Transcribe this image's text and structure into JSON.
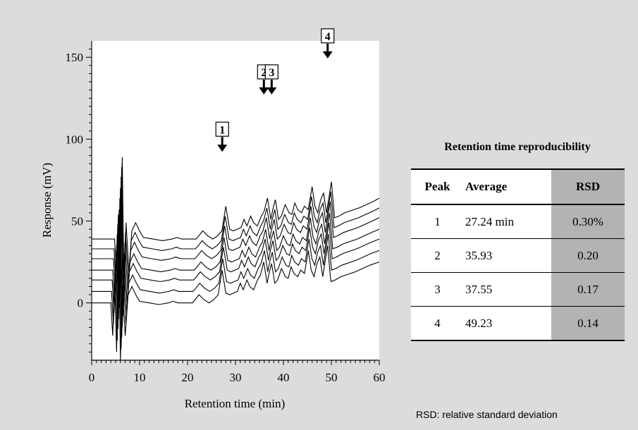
{
  "chart_data": {
    "type": "line",
    "xlabel": "Retention time (min)",
    "ylabel": "Response (mV)",
    "xlim": [
      0,
      60
    ],
    "ylim": [
      -35,
      160
    ],
    "x_ticks": [
      "0",
      "10",
      "20",
      "30",
      "40",
      "50",
      "60"
    ],
    "y_ticks": [
      "0",
      "50",
      "100",
      "150"
    ],
    "x_tick_values": [
      0,
      10,
      20,
      30,
      40,
      50,
      60
    ],
    "y_tick_values": [
      0,
      50,
      100,
      150
    ],
    "grid": false,
    "legend": "none",
    "baseline_offsets": [
      0,
      7,
      14,
      20,
      27,
      33,
      39
    ],
    "series": [
      {
        "x": [
          0,
          4,
          4.4,
          4.8,
          5.2,
          5.6,
          6,
          6.4,
          7,
          7.6,
          8.4,
          9.2,
          10,
          12,
          14,
          16,
          17,
          18,
          20,
          21,
          21.6,
          22.4,
          23.4,
          24.5,
          25.5,
          26.4,
          27.2,
          28,
          28.8,
          29.6,
          30.4,
          31,
          31.6,
          32.4,
          33,
          33.8,
          34.6,
          35.2,
          35.9,
          36.6,
          37,
          37.55,
          38.2,
          38.8,
          39.6,
          40.4,
          41,
          41.6,
          42.2,
          43,
          43.6,
          44.4,
          45.2,
          45.8,
          46.4,
          47,
          47.6,
          48.2,
          49.23,
          49.9,
          50.8,
          52,
          55,
          58,
          60
        ],
        "y": [
          0,
          0,
          -20,
          15,
          -30,
          50,
          -35,
          10,
          -20,
          5,
          10,
          5,
          1,
          0,
          -1,
          0,
          1,
          0,
          0,
          0,
          2,
          5,
          2,
          0,
          2,
          5,
          20,
          6,
          5,
          6,
          7,
          12,
          8,
          14,
          10,
          8,
          14,
          17,
          25,
          12,
          18,
          24,
          12,
          14,
          21,
          16,
          15,
          22,
          18,
          16,
          20,
          18,
          32,
          20,
          16,
          24,
          28,
          16,
          35,
          13,
          14,
          16,
          19,
          23,
          25
        ]
      }
    ],
    "peaks": [
      "1",
      "2",
      "3",
      "4"
    ],
    "peak_x": [
      27.24,
      35.93,
      37.55,
      49.23
    ]
  },
  "table": {
    "title": "Retention time reproducibility",
    "headers": [
      "Peak",
      "Average",
      "RSD"
    ],
    "rows": [
      [
        "1",
        "27.24 min",
        "0.30%"
      ],
      [
        "2",
        "35.93",
        "0.20"
      ],
      [
        "3",
        "37.55",
        "0.17"
      ],
      [
        "4",
        "49.23",
        "0.14"
      ]
    ]
  },
  "footnote": "RSD: relative standard deviation",
  "colors": {
    "background": "#dcdcdc",
    "plot": "#ffffff",
    "rsd_column": "#b3b3b3",
    "line": "#000000"
  }
}
